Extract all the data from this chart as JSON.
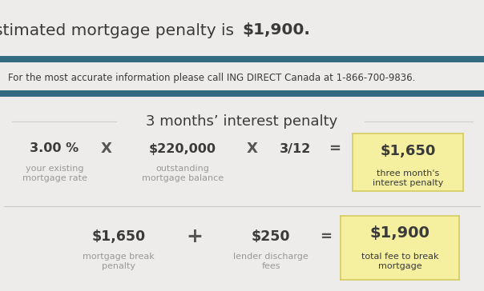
{
  "title_normal": "Your estimated mortgage penalty is ",
  "title_bold": "$1,900.",
  "subtitle": "For the most accurate information please call ING DIRECT Canada at 1-866-700-9836.",
  "section1_header": "3 months’ interest penalty",
  "val1": "3.00 %",
  "label1": "your existing\nmortgage rate",
  "val2": "$220,000",
  "label2": "outstanding\nmortgage balance",
  "val3": "3/12",
  "result1": "$1,650",
  "result1_label": "three month's\ninterest penalty",
  "val4": "$1,650",
  "label4": "mortgage break\npenalty",
  "val5": "$250",
  "label5": "lender discharge\nfees",
  "result2": "$1,900",
  "result2_label": "total fee to break\nmortgage",
  "bg_color": "#eeecea",
  "bg_color_light": "#f3f1ef",
  "yellow_color": "#f5f0a0",
  "yellow_border": "#d4cc60",
  "teal_color": "#336b80",
  "dark_text": "#3a3a3a",
  "gray_text": "#999999",
  "operator_color": "#555555",
  "sep_color": "#cccccc",
  "figw": 6.04,
  "figh": 3.64,
  "dpi": 100
}
